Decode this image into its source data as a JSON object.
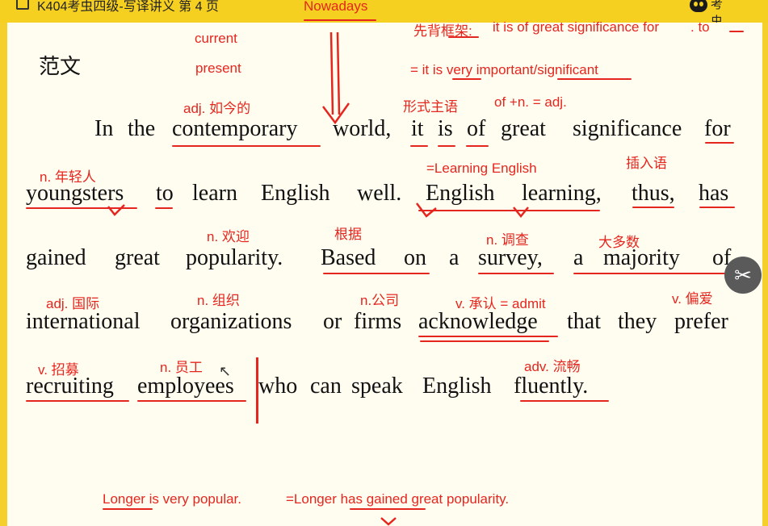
{
  "window": {
    "title": "K404考虫四级-写译讲义  第 4 页",
    "brand": "考虫"
  },
  "heading": "范文",
  "lines": [
    [
      "In",
      "the",
      "contemporary",
      "world,",
      "it",
      "is",
      "of",
      "great",
      "significance",
      "for"
    ],
    [
      "youngsters",
      "to",
      "learn",
      "English",
      "well.",
      "English",
      "learning,",
      "thus,",
      "has"
    ],
    [
      "gained",
      "great",
      "popularity.",
      "Based",
      "on",
      "a",
      "survey,",
      "a",
      "majority",
      "of"
    ],
    [
      "international",
      "organizations",
      "or",
      "firms",
      "acknowledge",
      "that",
      "they",
      "prefer"
    ],
    [
      "recruiting",
      "employees",
      "who",
      "can",
      "speak",
      "English",
      "fluently."
    ]
  ],
  "annotations": {
    "nowadays": "Nowadays",
    "current": "current",
    "present": "present",
    "framework": "先背框架:",
    "framework_expr": "it is of great significance for",
    "framework_to": ". to",
    "framework_dash": "",
    "very_important": "= it is very important/significant",
    "adj_contemporary": "adj. 如今的",
    "formal_subject": "形式主语",
    "of_n_adj": "of +n. = adj.",
    "n_youngsters": "n. 年轻人",
    "learning_english": "=Learning English",
    "parenthesis": "插入语",
    "n_welcome": "n. 欢迎",
    "based_on": "根据",
    "n_survey": "n. 调查",
    "majority": "大多数",
    "adj_international": "adj. 国际",
    "n_organization": "n. 组织",
    "n_company": "n.公司",
    "v_admit": "v. 承认 = admit",
    "v_prefer": "v. 偏爱",
    "v_recruit": "v. 招募",
    "n_employee": "n. 员工",
    "adv_fluent": "adv. 流畅",
    "longer_popular": "Longer is very popular.",
    "longer_gained": "=Longer has gained great popularity."
  }
}
